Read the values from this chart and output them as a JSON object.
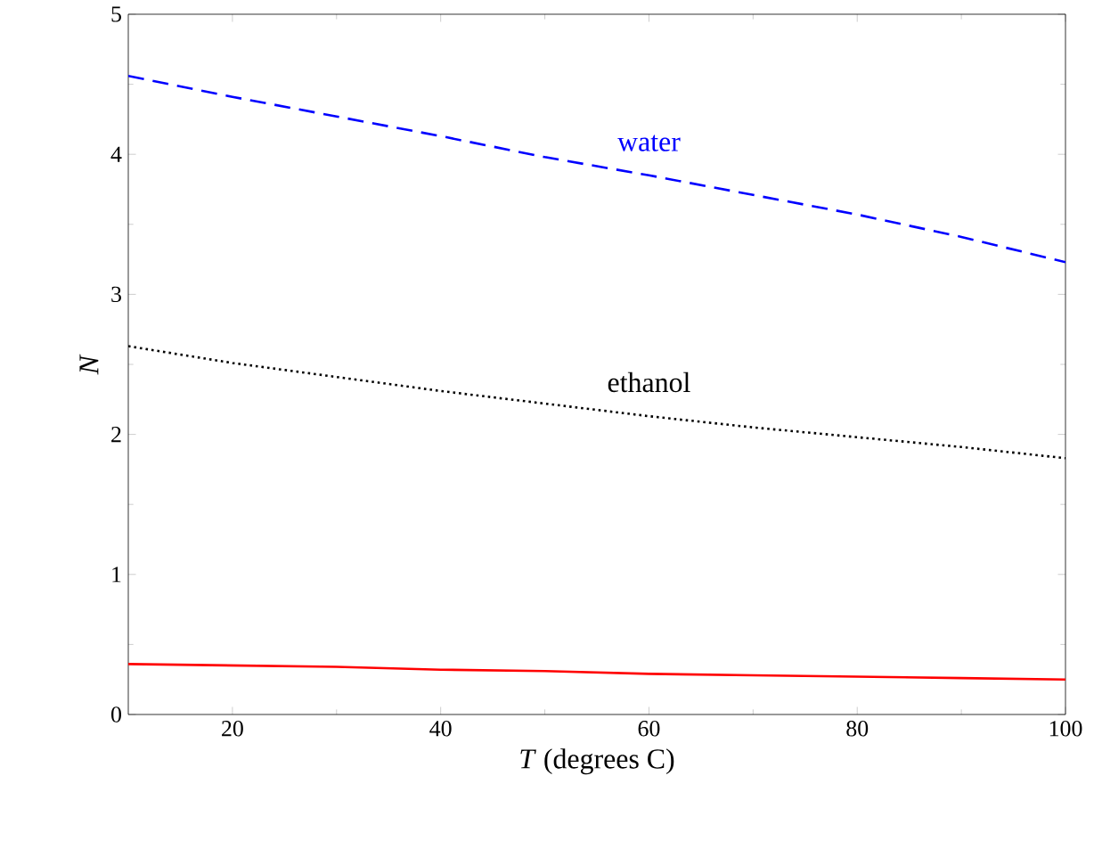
{
  "chart_data": {
    "type": "line",
    "xlabel": "*T* (degrees C)",
    "ylabel": "*N*",
    "x": [
      10,
      20,
      30,
      40,
      50,
      60,
      70,
      80,
      90,
      100
    ],
    "series": [
      {
        "name": "water",
        "color": "#0000ff",
        "line_style": "dashed",
        "values": [
          4.56,
          4.41,
          4.27,
          4.13,
          3.98,
          3.85,
          3.71,
          3.57,
          3.41,
          3.23
        ]
      },
      {
        "name": "ethanol",
        "color": "#000000",
        "line_style": "dotted",
        "values": [
          2.63,
          2.51,
          2.41,
          2.31,
          2.22,
          2.13,
          2.05,
          1.98,
          1.91,
          1.83
        ]
      },
      {
        "color": "#ff0000",
        "line_style": "solid",
        "values": [
          0.36,
          0.35,
          0.34,
          0.32,
          0.31,
          0.29,
          0.28,
          0.27,
          0.26,
          0.25
        ]
      }
    ],
    "xlim": [
      10,
      100
    ],
    "ylim": [
      0,
      5
    ],
    "xticks": [
      20,
      40,
      60,
      80,
      100
    ],
    "yticks": [
      0,
      1,
      2,
      3,
      4,
      5
    ]
  }
}
